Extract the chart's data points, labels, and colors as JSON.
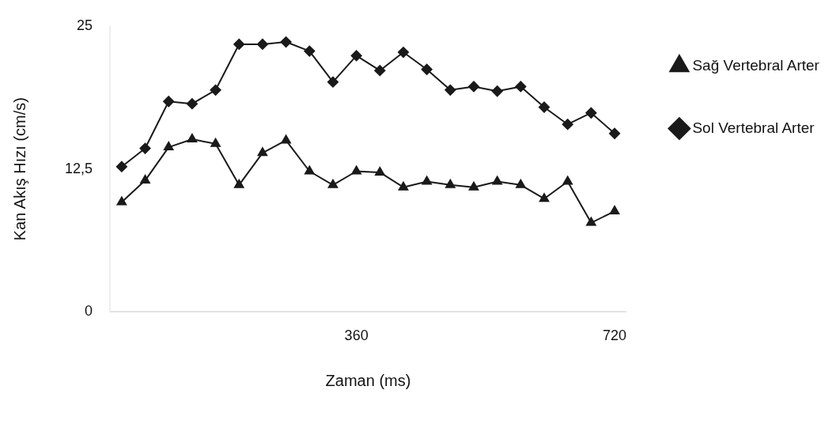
{
  "chart_data": {
    "type": "line",
    "xlabel": "Zaman (ms)",
    "ylabel": "Kan Akış Hızı (cm/s)",
    "categories": [
      null,
      null,
      null,
      null,
      null,
      null,
      null,
      null,
      null,
      null,
      "360",
      null,
      null,
      null,
      null,
      null,
      null,
      null,
      null,
      null,
      null,
      "720"
    ],
    "ylim": [
      0,
      25
    ],
    "yticks": [
      0,
      {
        "value": 12.5,
        "label": "12,5"
      },
      25
    ],
    "grid": false,
    "legend": "top right",
    "line_style": "solid",
    "series": [
      {
        "name": "Sağ Vertebral Arter",
        "color": "#1a1a1a",
        "marker": "triangle",
        "values": [
          9.6,
          11.5,
          14.4,
          15.1,
          14.7,
          11.1,
          13.9,
          15.0,
          12.3,
          11.1,
          12.3,
          12.2,
          10.9,
          11.4,
          11.1,
          10.9,
          11.4,
          11.1,
          9.9,
          11.4,
          7.8,
          8.8
        ]
      },
      {
        "name": "Sol Vertebral Arter",
        "color": "#1a1a1a",
        "marker": "diamond",
        "values": [
          12.7,
          14.3,
          18.4,
          18.2,
          19.4,
          23.4,
          23.4,
          23.6,
          22.8,
          20.1,
          22.4,
          21.1,
          22.7,
          21.2,
          19.4,
          19.7,
          19.3,
          19.7,
          17.9,
          16.4,
          17.4,
          15.6
        ]
      }
    ]
  }
}
